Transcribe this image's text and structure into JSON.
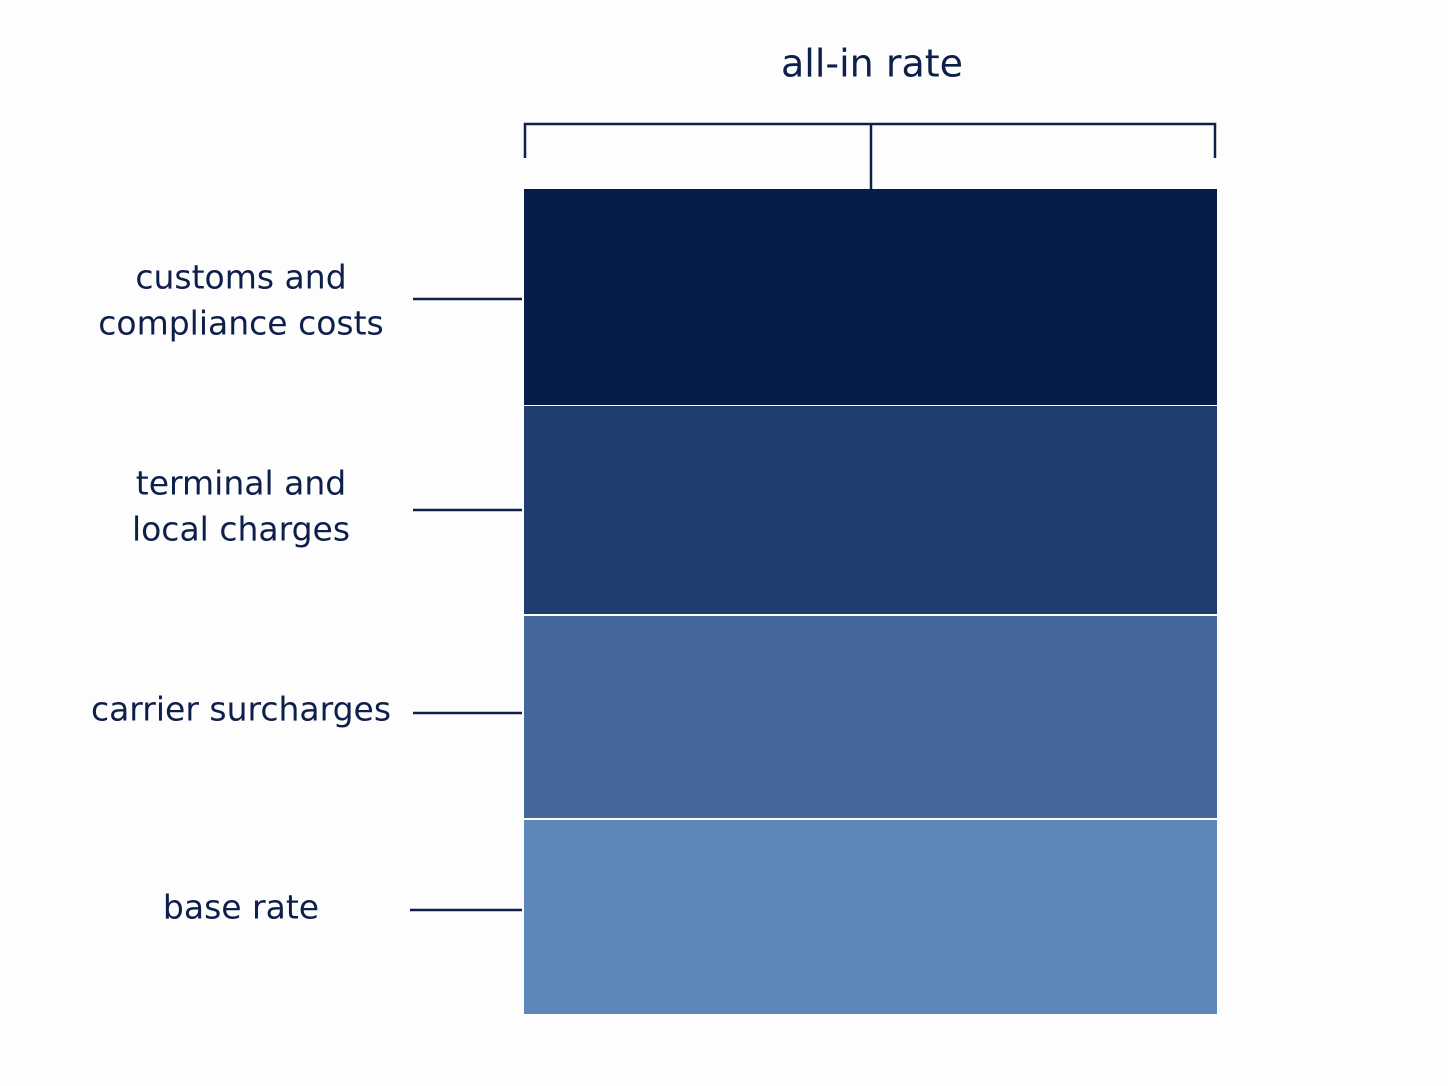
{
  "title": "all-in rate",
  "layers": [
    {
      "label": [
        "customs and",
        "compliance costs"
      ]
    },
    {
      "label": [
        "terminal and",
        "local charges"
      ]
    },
    {
      "label": [
        "carrier surcharges"
      ]
    },
    {
      "label": [
        "base rate"
      ]
    }
  ]
}
